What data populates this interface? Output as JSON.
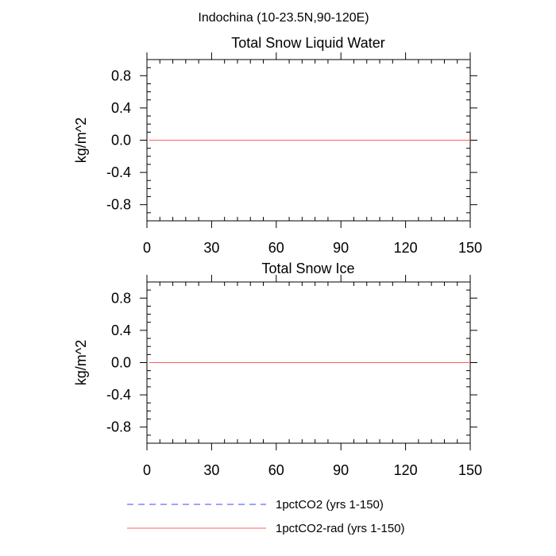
{
  "figure": {
    "suptitle": "Indochina (10-23.5N,90-120E)"
  },
  "chart_data": [
    {
      "type": "line",
      "title": "Total Snow Liquid Water",
      "xlabel": "",
      "ylabel": "kg/m^2",
      "xlim": [
        0,
        150
      ],
      "ylim": [
        -1,
        1
      ],
      "xticks": [
        0,
        30,
        60,
        90,
        120,
        150
      ],
      "yticks": [
        -0.8,
        -0.4,
        0.0,
        0.4,
        0.8
      ],
      "ytick_labels": [
        "-0.8",
        "-0.4",
        "0.0",
        "0.4",
        "0.8"
      ],
      "grid": false,
      "series": [
        {
          "name": "1pctCO2 (yrs 1-150)",
          "color": "#4040ff",
          "dash": "dashed",
          "x": [
            1,
            150
          ],
          "y": [
            0,
            0
          ]
        },
        {
          "name": "1pctCO2-rad (yrs 1-150)",
          "color": "#ff6060",
          "dash": "solid",
          "x": [
            1,
            150
          ],
          "y": [
            0,
            0
          ]
        }
      ]
    },
    {
      "type": "line",
      "title": "Total Snow Ice",
      "xlabel": "",
      "ylabel": "kg/m^2",
      "xlim": [
        0,
        150
      ],
      "ylim": [
        -1,
        1
      ],
      "xticks": [
        0,
        30,
        60,
        90,
        120,
        150
      ],
      "yticks": [
        -0.8,
        -0.4,
        0.0,
        0.4,
        0.8
      ],
      "ytick_labels": [
        "-0.8",
        "-0.4",
        "0.0",
        "0.4",
        "0.8"
      ],
      "grid": false,
      "series": [
        {
          "name": "1pctCO2 (yrs 1-150)",
          "color": "#4040ff",
          "dash": "dashed",
          "x": [
            1,
            150
          ],
          "y": [
            0,
            0
          ]
        },
        {
          "name": "1pctCO2-rad (yrs 1-150)",
          "color": "#ff6060",
          "dash": "solid",
          "x": [
            1,
            150
          ],
          "y": [
            0,
            0
          ]
        }
      ]
    }
  ],
  "legend": {
    "placement": "bottom",
    "entries": [
      {
        "label": "1pctCO2 (yrs 1-150)",
        "color": "#4040ff",
        "dash": "dashed"
      },
      {
        "label": "1pctCO2-rad (yrs 1-150)",
        "color": "#ff6060",
        "dash": "solid"
      }
    ]
  }
}
